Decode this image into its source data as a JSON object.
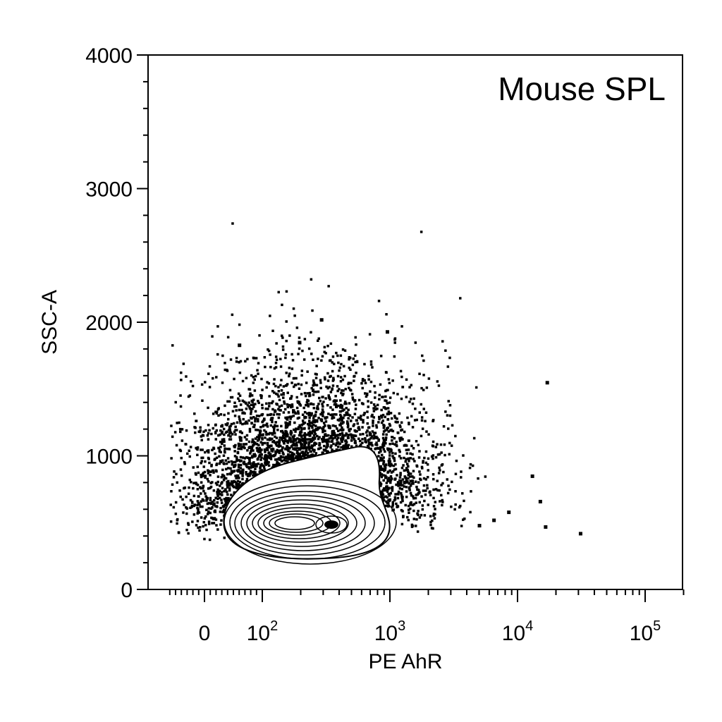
{
  "chart_data": {
    "type": "scatter",
    "title": "Mouse SPL",
    "xlabel": "PE AhR",
    "ylabel": "SSC-A",
    "x_scale": "biexponential",
    "xlim": [
      -60,
      250000
    ],
    "ylim": [
      0,
      4000
    ],
    "y_ticks": [
      {
        "value": 0,
        "label": "0"
      },
      {
        "value": 1000,
        "label": "1000"
      },
      {
        "value": 2000,
        "label": "2000"
      },
      {
        "value": 3000,
        "label": "3000"
      },
      {
        "value": 4000,
        "label": "4000"
      }
    ],
    "x_ticks": [
      {
        "value": 0,
        "base": "0",
        "exp": ""
      },
      {
        "value": 100,
        "base": "10",
        "exp": "2"
      },
      {
        "value": 1000,
        "base": "10",
        "exp": "3"
      },
      {
        "value": 10000,
        "base": "10",
        "exp": "4"
      },
      {
        "value": 100000,
        "base": "10",
        "exp": "5"
      }
    ],
    "overlay": "contour",
    "population_center": {
      "x": 300,
      "y": 500
    },
    "outlier_points": [
      {
        "x": 17000,
        "y": 1550
      },
      {
        "x": 13000,
        "y": 850
      },
      {
        "x": 15000,
        "y": 660
      },
      {
        "x": 16500,
        "y": 470
      },
      {
        "x": 31000,
        "y": 420
      },
      {
        "x": 8500,
        "y": 580
      },
      {
        "x": 6500,
        "y": 520
      },
      {
        "x": 5000,
        "y": 480
      },
      {
        "x": 290,
        "y": 2020
      },
      {
        "x": 950,
        "y": 1930
      },
      {
        "x": 60,
        "y": 1830
      },
      {
        "x": 195,
        "y": 1850
      }
    ],
    "legend": "none",
    "grid": false
  }
}
